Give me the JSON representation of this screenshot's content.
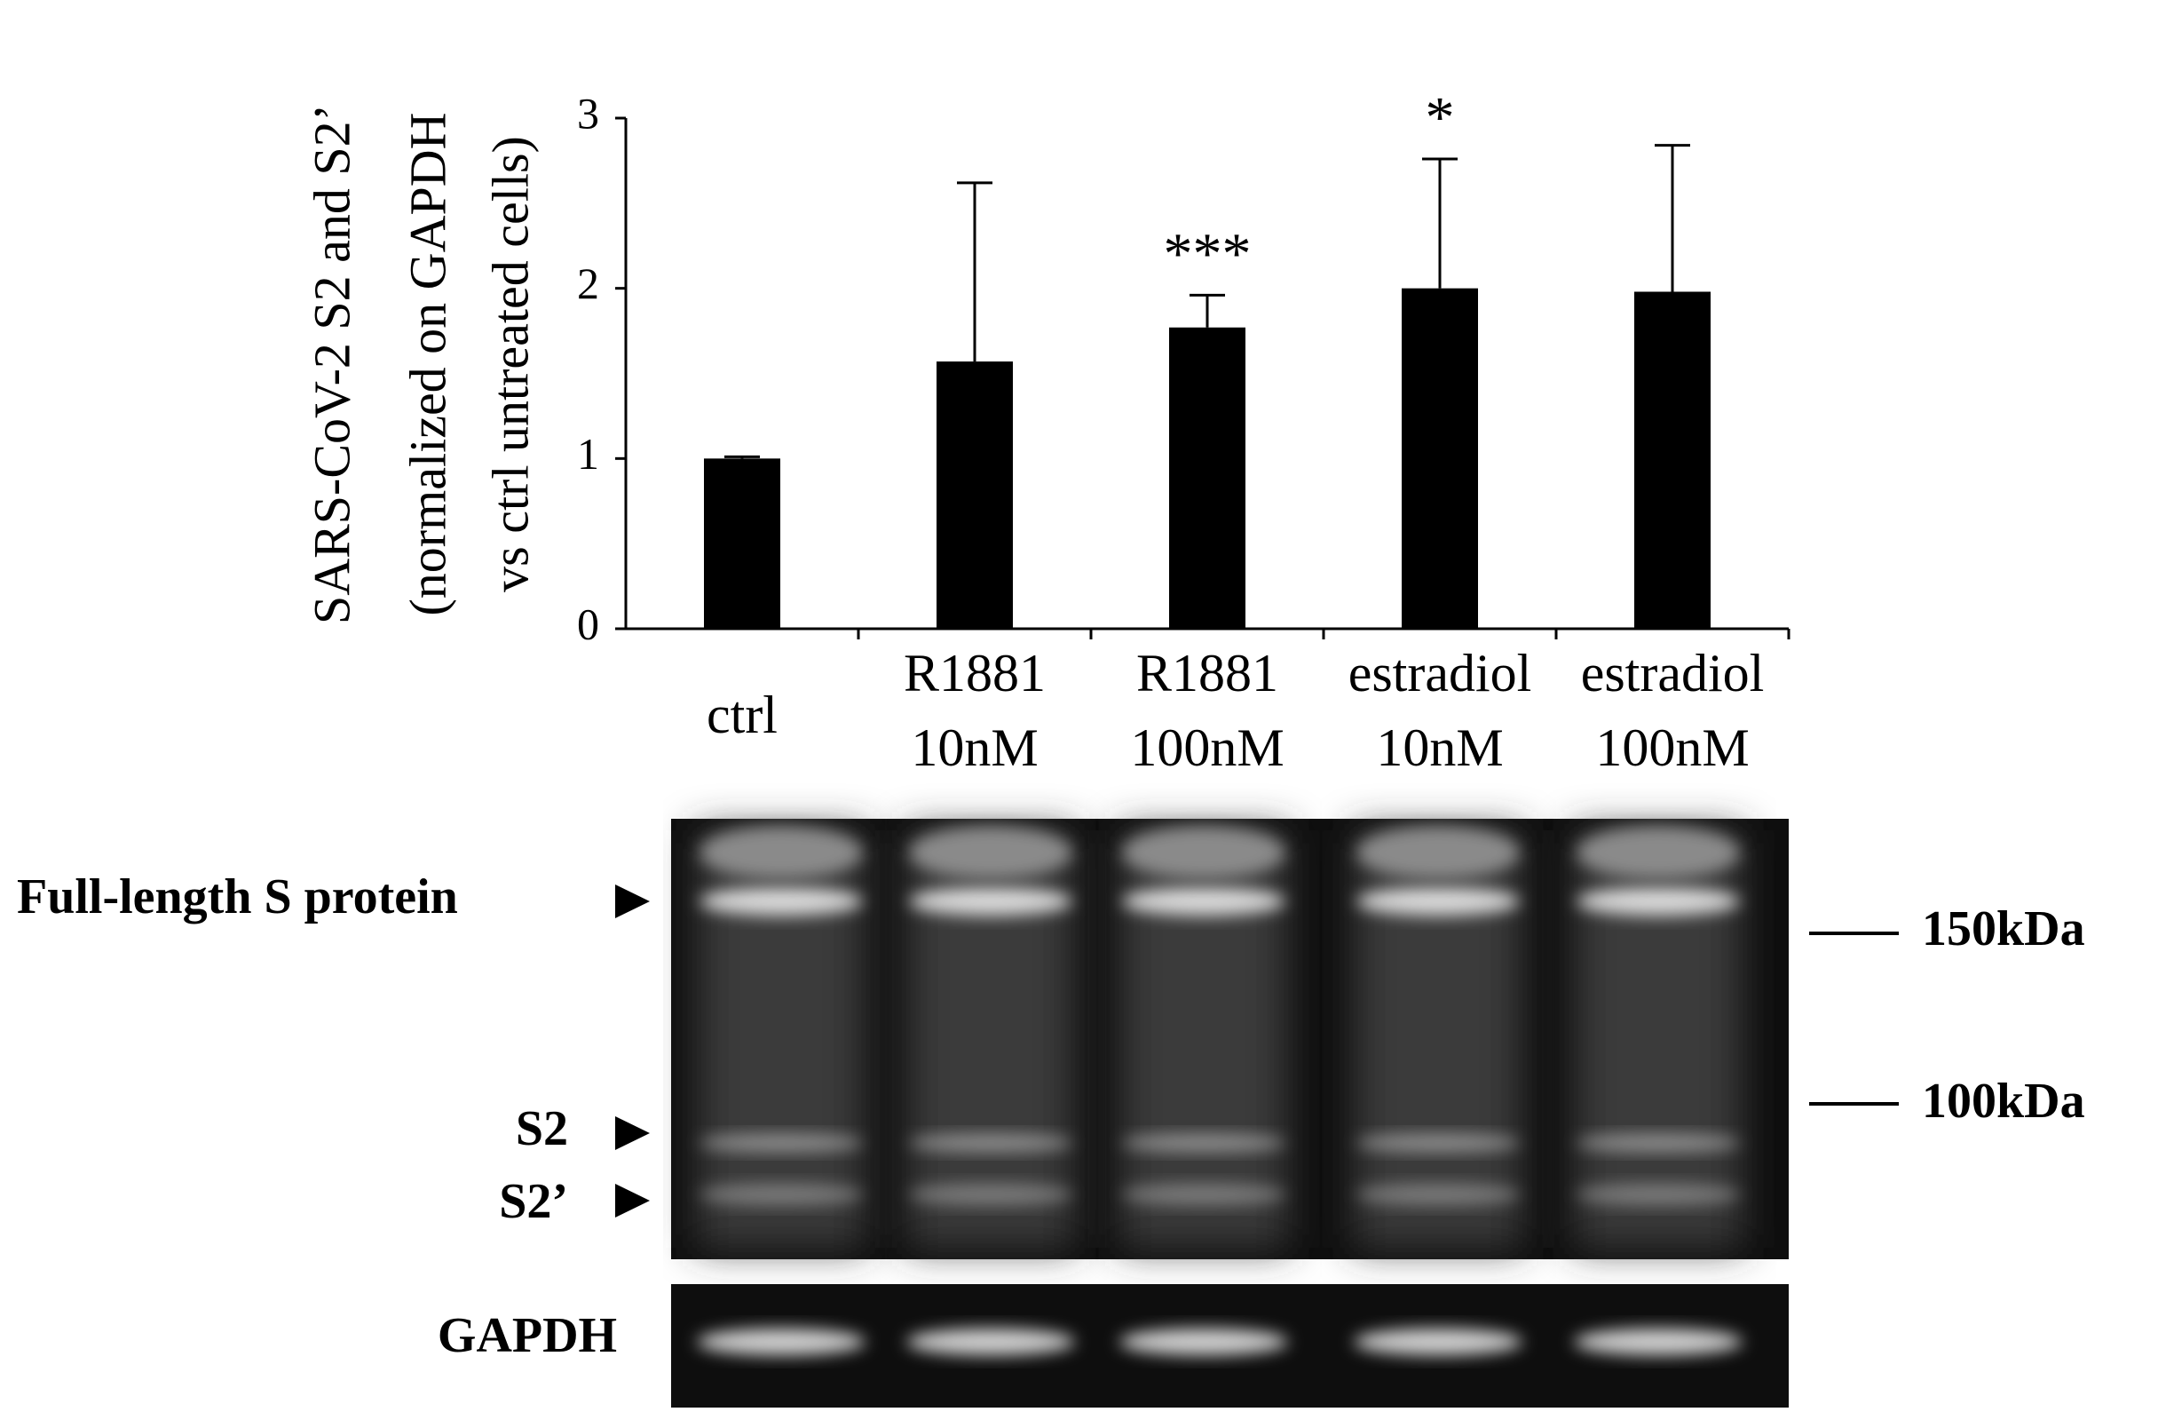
{
  "chart_data": {
    "type": "bar",
    "y_label": [
      "SARS-CoV-2 S2 and S2’",
      "(normalized on GAPDH",
      "vs ctrl untreated cells)"
    ],
    "categories": [
      [
        "ctrl"
      ],
      [
        "R1881",
        "10nM"
      ],
      [
        "R1881",
        "100nM"
      ],
      [
        "estradiol",
        "10nM"
      ],
      [
        "estradiol",
        "100nM"
      ]
    ],
    "values": [
      1.0,
      1.57,
      1.77,
      2.0,
      1.98
    ],
    "errors": [
      0.01,
      1.05,
      0.19,
      0.76,
      0.86
    ],
    "significance": [
      null,
      null,
      "***",
      "*",
      null
    ],
    "color": "#000000",
    "ylim": [
      0,
      3
    ],
    "yticks": [
      0,
      1,
      2,
      3
    ]
  },
  "blot": {
    "band_labels": [
      "Full-length S protein",
      "S2",
      "S2’"
    ],
    "markers": [
      "150kDa",
      "100kDa"
    ],
    "loading_control": "GAPDH"
  }
}
